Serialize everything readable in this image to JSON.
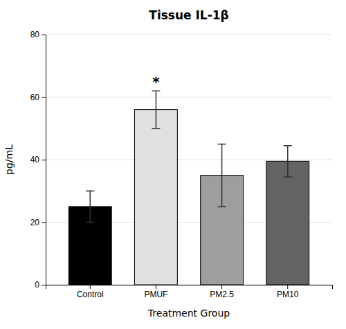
{
  "chart_data": {
    "type": "bar",
    "title": "Tissue IL-1β",
    "x_label": "Treatment Group",
    "y_label": "pg/mL",
    "categories": [
      "Control",
      "PMUF",
      "PM2.5",
      "PM10"
    ],
    "values": [
      25.0,
      56.0,
      35.0,
      39.5
    ],
    "errors": [
      5.0,
      6.0,
      10.0,
      5.0
    ],
    "colors": [
      "#000000",
      "#e0e0e0",
      "#9e9e9e",
      "#636363"
    ],
    "ylim": [
      0,
      80
    ],
    "yticks": [
      0,
      20,
      40,
      60,
      80
    ],
    "grid": true,
    "annotations": [
      {
        "text": "*",
        "x": "PMUF"
      }
    ]
  }
}
